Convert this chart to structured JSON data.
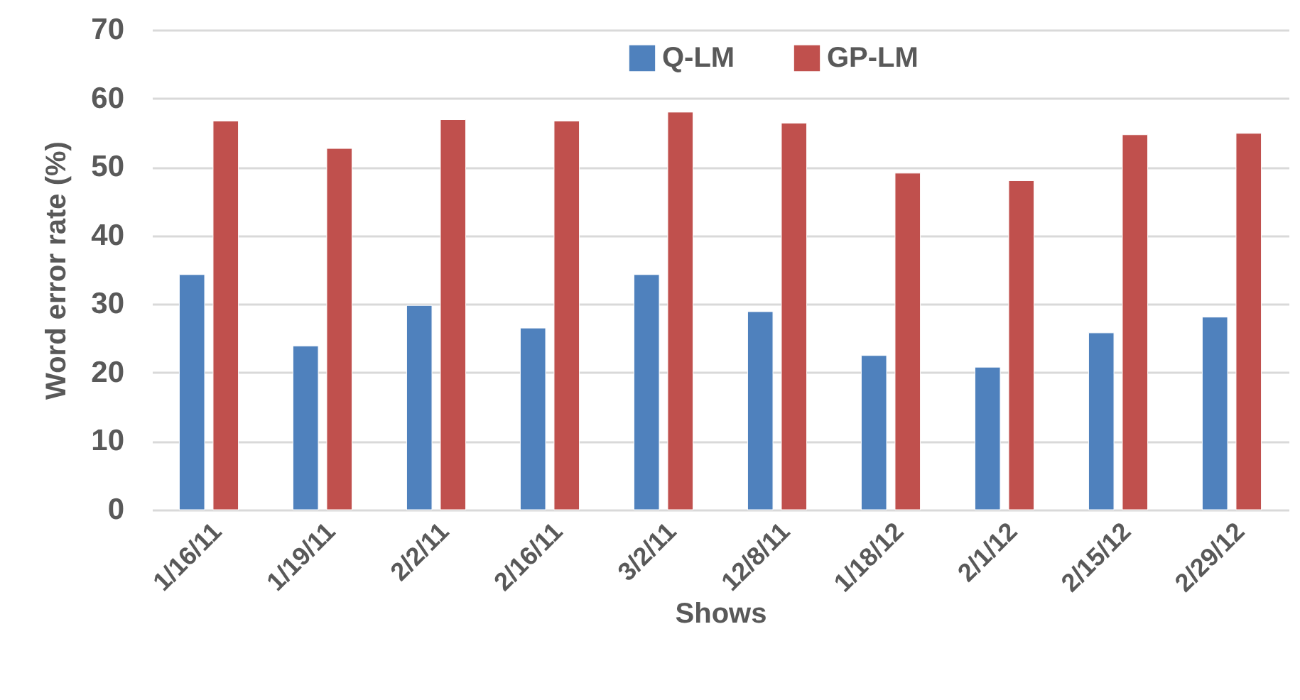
{
  "chart_data": {
    "type": "bar",
    "xlabel": "Shows",
    "ylabel": "Word error rate (%)",
    "categories": [
      "1/16/11",
      "1/19/11",
      "2/2/11",
      "2/16/11",
      "3/2/11",
      "12/8/11",
      "1/18/12",
      "2/1/12",
      "2/15/12",
      "2/29/12"
    ],
    "series": [
      {
        "name": "Q-LM",
        "color": "#4f81bd",
        "values": [
          34.3,
          23.9,
          29.8,
          26.5,
          34.3,
          28.9,
          22.5,
          20.8,
          25.8,
          28.1
        ]
      },
      {
        "name": "GP-LM",
        "color": "#c0504d",
        "values": [
          56.7,
          52.7,
          56.9,
          56.7,
          58.0,
          56.4,
          49.1,
          48.0,
          54.7,
          54.9
        ]
      }
    ],
    "ylim": [
      0,
      70
    ],
    "yticks": [
      0,
      10,
      20,
      30,
      40,
      50,
      60,
      70
    ],
    "grid": "y",
    "legend": "top"
  }
}
